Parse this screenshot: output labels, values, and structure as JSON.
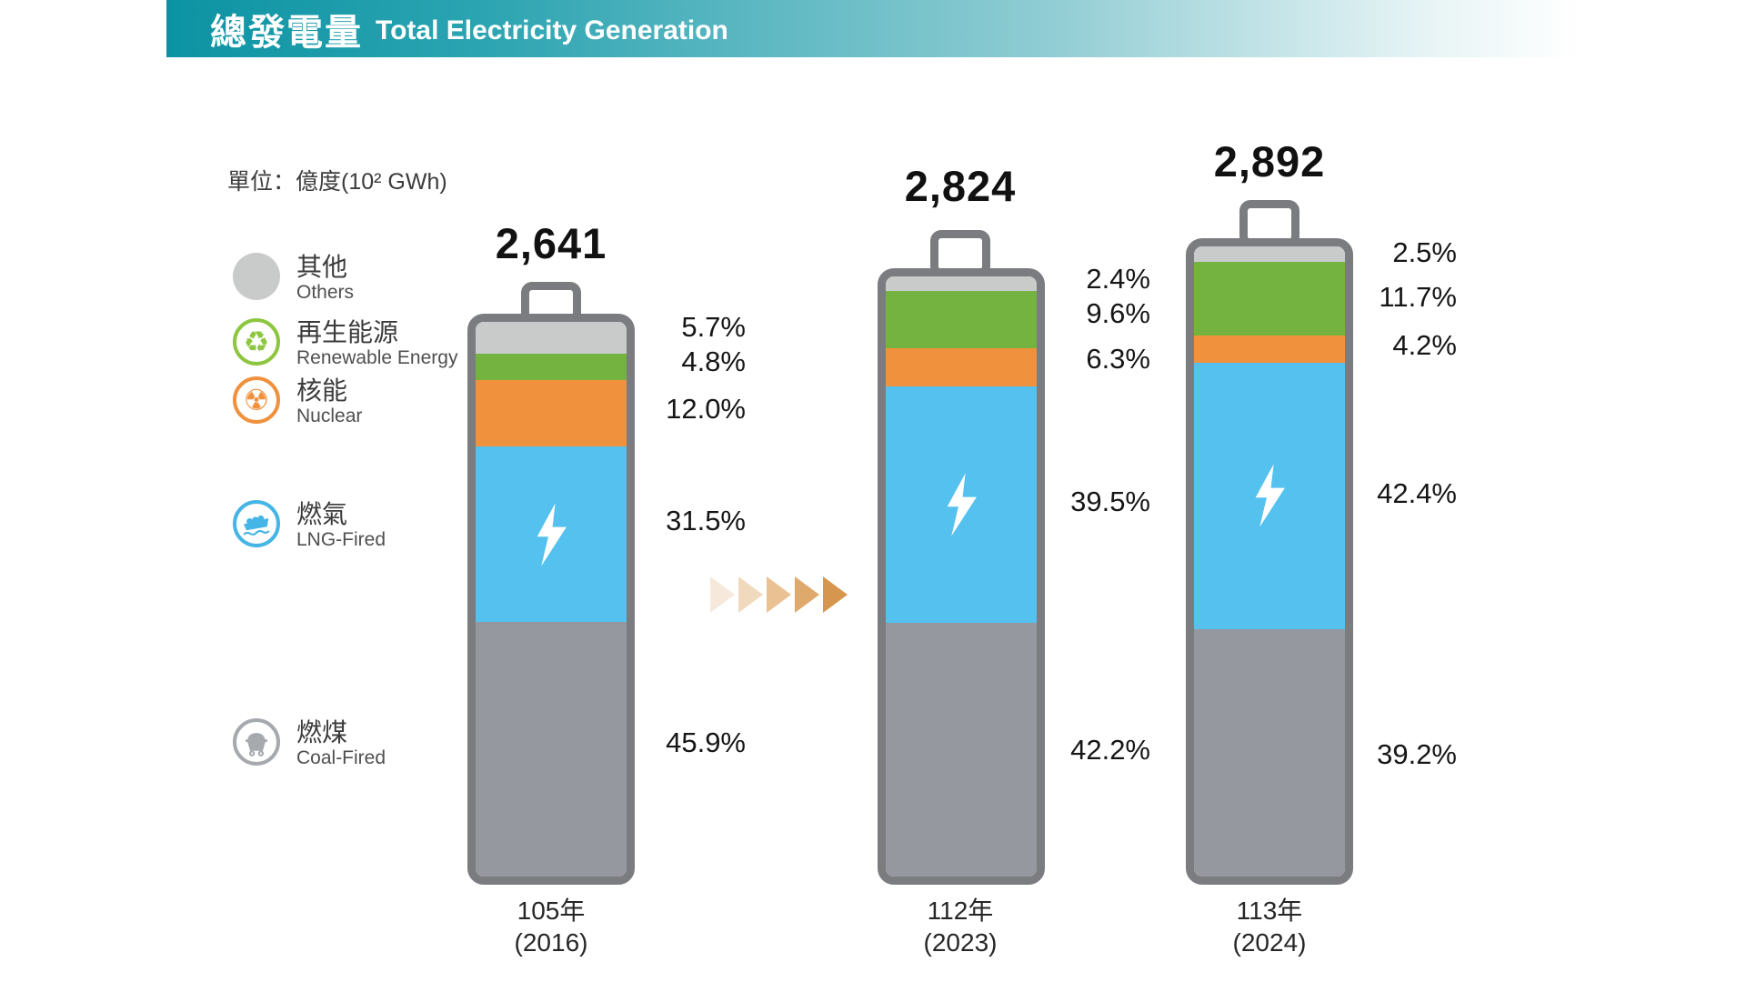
{
  "header": {
    "title_zh": "總發電量",
    "title_en": "Total Electricity Generation"
  },
  "unit_label": "單位：億度(10² GWh)",
  "legend": [
    {
      "key": "others",
      "zh": "其他",
      "en": "Others"
    },
    {
      "key": "renewable",
      "zh": "再生能源",
      "en": "Renewable Energy"
    },
    {
      "key": "nuclear",
      "zh": "核能",
      "en": "Nuclear"
    },
    {
      "key": "lng",
      "zh": "燃氣",
      "en": "LNG-Fired"
    },
    {
      "key": "coal",
      "zh": "燃煤",
      "en": "Coal-Fired"
    }
  ],
  "colors": {
    "others": "#c9caca",
    "renewable": "#74b33f",
    "nuclear": "#f0913d",
    "lng": "#55c1ee",
    "coal": "#95989e",
    "battery_border": "#7b7c80",
    "legend_renewable": "#8dc63f",
    "legend_nuclear": "#f0913e",
    "legend_lng": "#45b5e6",
    "legend_coal": "#a6a9ae",
    "header_teal": "#0c93a3"
  },
  "arrows": [
    "#f6e9dc",
    "#f1d9bd",
    "#e9c193",
    "#dfa96b",
    "#d6964d"
  ],
  "bars": [
    {
      "total": "2,641",
      "year_zh": "105年",
      "year_en": "(2016)",
      "pcts": [
        "5.7%",
        "4.8%",
        "12.0%",
        "31.5%",
        "45.9%"
      ]
    },
    {
      "total": "2,824",
      "year_zh": "112年",
      "year_en": "(2023)",
      "pcts": [
        "2.4%",
        "9.6%",
        "6.3%",
        "39.5%",
        "42.2%"
      ]
    },
    {
      "total": "2,892",
      "year_zh": "113年",
      "year_en": "(2024)",
      "pcts": [
        "2.5%",
        "11.7%",
        "4.2%",
        "42.4%",
        "39.2%"
      ]
    }
  ],
  "chart_data": {
    "type": "bar",
    "stacked": true,
    "bar_style": "battery",
    "title_zh": "總發電量",
    "title_en": "Total Electricity Generation",
    "unit": "億度(10² GWh)",
    "categories": [
      "105年 (2016)",
      "112年 (2023)",
      "113年 (2024)"
    ],
    "totals": [
      2641,
      2824,
      2892
    ],
    "series": [
      {
        "key": "others",
        "name": "其他 Others",
        "values_pct": [
          5.7,
          2.4,
          2.5
        ]
      },
      {
        "key": "renewable",
        "name": "再生能源 Renewable Energy",
        "values_pct": [
          4.8,
          9.6,
          11.7
        ]
      },
      {
        "key": "nuclear",
        "name": "核能 Nuclear",
        "values_pct": [
          12.0,
          6.3,
          4.2
        ]
      },
      {
        "key": "lng",
        "name": "燃氣 LNG-Fired",
        "values_pct": [
          31.5,
          39.5,
          42.4
        ]
      },
      {
        "key": "coal",
        "name": "燃煤 Coal-Fired",
        "values_pct": [
          45.9,
          42.2,
          39.2
        ]
      }
    ],
    "legend_position": "left",
    "value_labels": "percent shown to the right of each bar",
    "grid": false
  }
}
